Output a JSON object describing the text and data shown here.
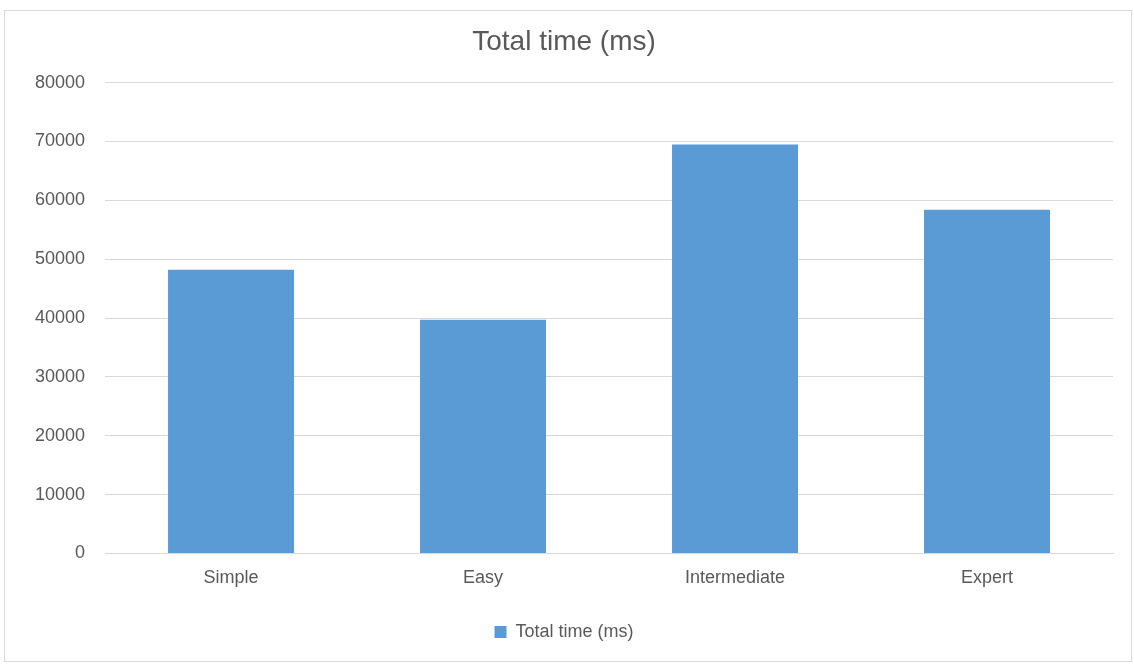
{
  "chart_data": {
    "type": "bar",
    "title": "Total time (ms)",
    "categories": [
      "Simple",
      "Easy",
      "Intermediate",
      "Expert"
    ],
    "series": [
      {
        "name": "Total time (ms)",
        "color": "#5b9bd5",
        "values": [
          48200,
          39700,
          69500,
          58400
        ]
      }
    ],
    "ylim": [
      0,
      80000
    ],
    "yticks": [
      0,
      10000,
      20000,
      30000,
      40000,
      50000,
      60000,
      70000,
      80000
    ],
    "grid": "y",
    "legend": "bottom"
  }
}
